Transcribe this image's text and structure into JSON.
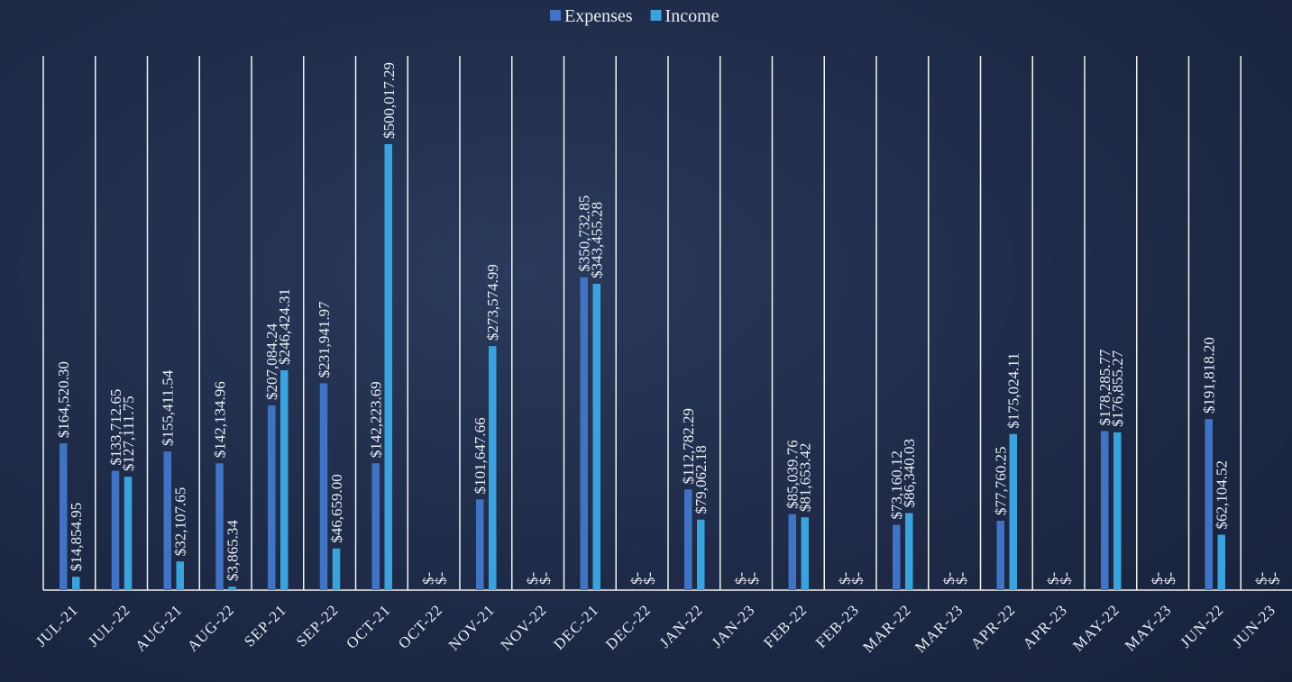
{
  "chart_data": {
    "type": "bar",
    "categories": [
      "JUL-21",
      "JUL-22",
      "AUG-21",
      "AUG-22",
      "SEP-21",
      "SEP-22",
      "OCT-21",
      "OCT-22",
      "NOV-21",
      "NOV-22",
      "DEC-21",
      "DEC-22",
      "JAN-22",
      "JAN-23",
      "FEB-22",
      "FEB-23",
      "MAR-22",
      "MAR-23",
      "APR-22",
      "APR-23",
      "MAY-22",
      "MAY-23",
      "JUN-22",
      "JUN-23"
    ],
    "series": [
      {
        "name": "Expenses",
        "color": "#4173c4",
        "values": [
          164520.3,
          133712.65,
          155411.54,
          142134.96,
          207084.24,
          231941.97,
          142223.69,
          0,
          101647.66,
          0,
          350732.85,
          0,
          112782.29,
          0,
          85039.76,
          0,
          73160.12,
          0,
          77760.25,
          0,
          178285.77,
          0,
          191818.2,
          0
        ],
        "value_labels": [
          "$164,520.30",
          "$133,712.65",
          "$155,411.54",
          "$142,134.96",
          "$207,084.24",
          "$231,941.97",
          "$142,223.69",
          "$-",
          "$101,647.66",
          "$-",
          "$350,732.85",
          "$-",
          "$112,782.29",
          "$-",
          "$85,039.76",
          "$-",
          "$73,160.12",
          "$-",
          "$77,760.25",
          "$-",
          "$178,285.77",
          "$-",
          "$191,818.20",
          "$-"
        ]
      },
      {
        "name": "Income",
        "color": "#3aa3dd",
        "values": [
          14854.95,
          127111.75,
          32107.65,
          3865.34,
          246424.31,
          46659.0,
          500017.29,
          0,
          273574.99,
          0,
          343455.28,
          0,
          79062.18,
          0,
          81653.42,
          0,
          86340.03,
          0,
          175024.11,
          0,
          176855.27,
          0,
          62104.52,
          0
        ],
        "value_labels": [
          "$14,854.95",
          "$127,111.75",
          "$32,107.65",
          "$3,865.34",
          "$246,424.31",
          "$46,659.00",
          "$500,017.29",
          "$-",
          "$273,574.99",
          "$-",
          "$343,455.28",
          "$-",
          "$79,062.18",
          "$-",
          "$81,653.42",
          "$-",
          "$86,340.03",
          "$-",
          "$175,024.11",
          "$-",
          "$176,855.27",
          "$-",
          "$62,104.52",
          "$-"
        ]
      }
    ],
    "legend": "top"
  }
}
